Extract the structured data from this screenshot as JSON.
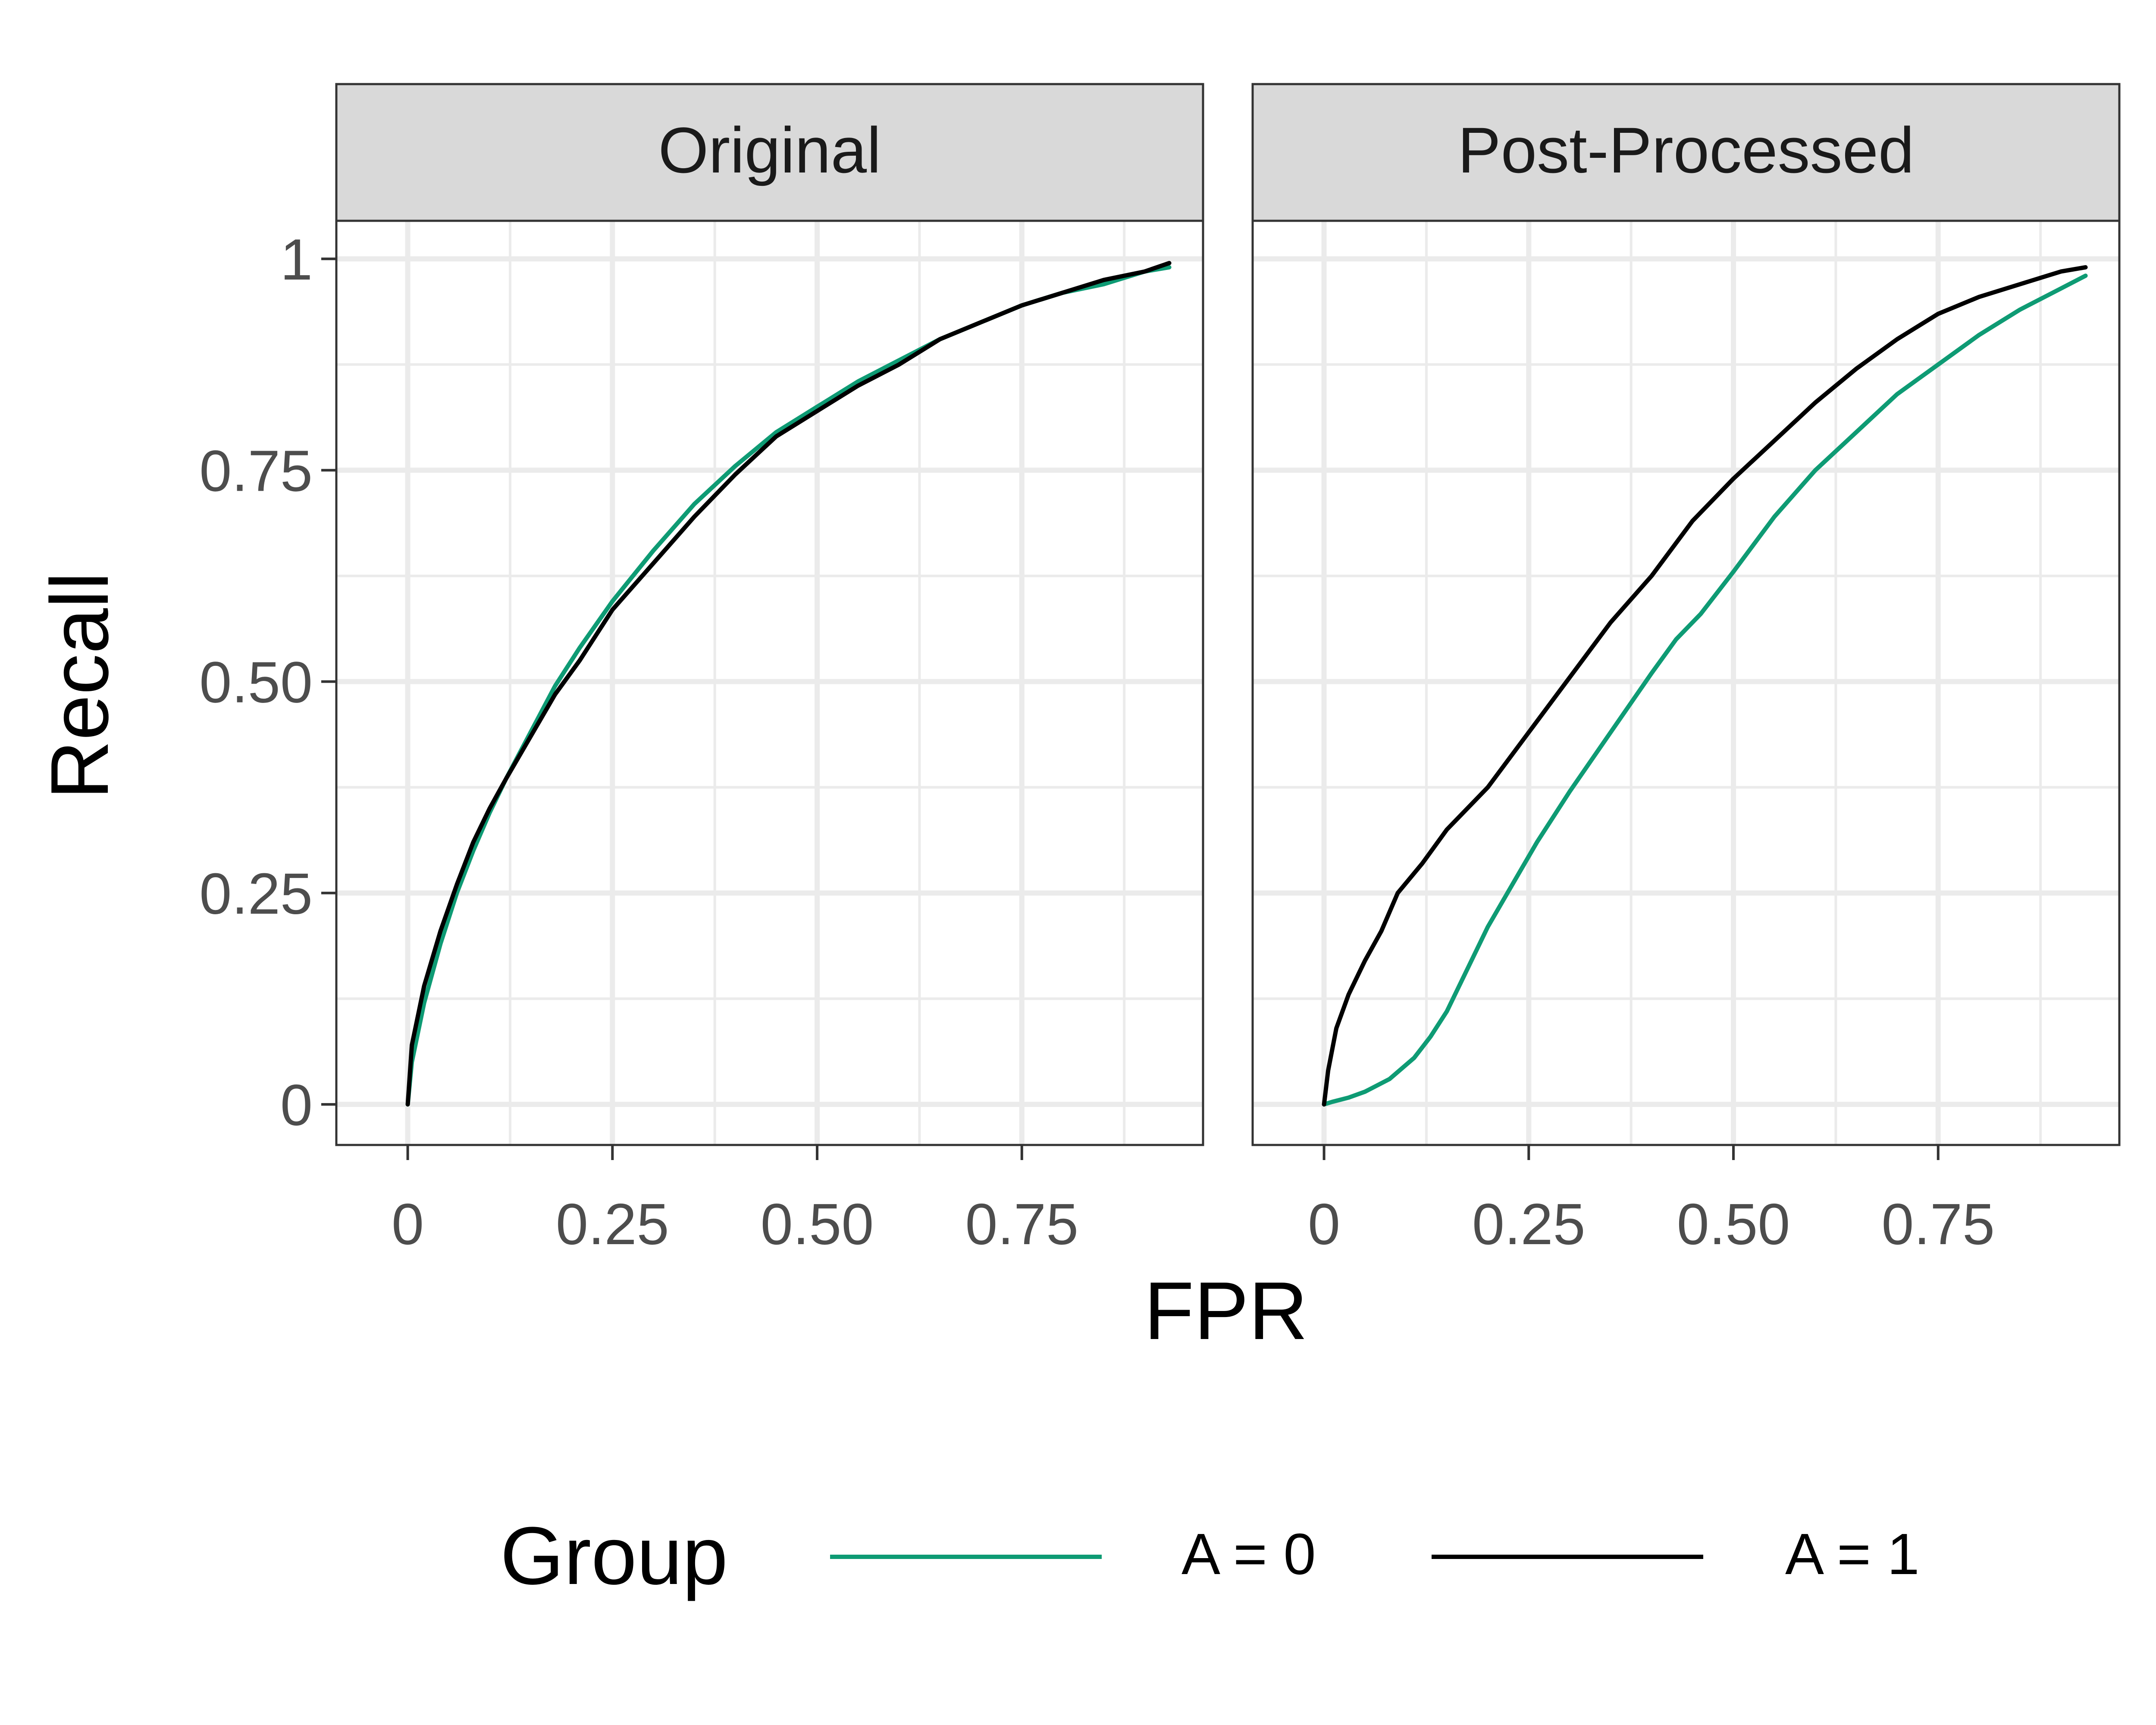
{
  "chart_data": {
    "type": "line",
    "xlabel": "FPR",
    "ylabel": "Recall",
    "xlim": [
      -0.0872,
      0.9713
    ],
    "ylim": [
      -0.048,
      1.045
    ],
    "x_ticks": [
      0,
      0.25,
      0.5,
      0.75
    ],
    "x_tick_labels": [
      "0",
      "0.25",
      "0.50",
      "0.75"
    ],
    "y_ticks": [
      0,
      0.25,
      0.5,
      0.75,
      1
    ],
    "y_tick_labels": [
      "0",
      "0.25",
      "0.50",
      "0.75",
      "1"
    ],
    "grid": true,
    "legend": {
      "title": "Group",
      "position": "bottom",
      "entries": [
        "A = 0",
        "A = 1"
      ]
    },
    "series_colors": {
      "A = 0": "#0e9b74",
      "A = 1": "#000000"
    },
    "facets": [
      {
        "title": "Original",
        "series": [
          {
            "name": "A = 0",
            "x": [
              0,
              0.005,
              0.02,
              0.04,
              0.06,
              0.08,
              0.1,
              0.12,
              0.15,
              0.18,
              0.21,
              0.25,
              0.3,
              0.35,
              0.4,
              0.45,
              0.5,
              0.55,
              0.6,
              0.65,
              0.7,
              0.75,
              0.8,
              0.85,
              0.9,
              0.93
            ],
            "y": [
              0,
              0.05,
              0.12,
              0.19,
              0.25,
              0.3,
              0.345,
              0.385,
              0.44,
              0.495,
              0.54,
              0.595,
              0.655,
              0.71,
              0.755,
              0.795,
              0.825,
              0.855,
              0.88,
              0.905,
              0.925,
              0.945,
              0.96,
              0.97,
              0.985,
              0.99
            ]
          },
          {
            "name": "A = 1",
            "x": [
              0,
              0.005,
              0.02,
              0.04,
              0.06,
              0.08,
              0.1,
              0.12,
              0.15,
              0.18,
              0.21,
              0.25,
              0.3,
              0.35,
              0.4,
              0.45,
              0.5,
              0.55,
              0.6,
              0.65,
              0.7,
              0.75,
              0.8,
              0.85,
              0.9,
              0.93
            ],
            "y": [
              0,
              0.07,
              0.14,
              0.205,
              0.26,
              0.31,
              0.35,
              0.385,
              0.435,
              0.485,
              0.525,
              0.585,
              0.64,
              0.695,
              0.745,
              0.79,
              0.82,
              0.85,
              0.875,
              0.905,
              0.925,
              0.945,
              0.96,
              0.975,
              0.985,
              0.995
            ]
          }
        ]
      },
      {
        "title": "Post-Processed",
        "series": [
          {
            "name": "A = 0",
            "x": [
              0,
              0.01,
              0.03,
              0.05,
              0.08,
              0.11,
              0.13,
              0.15,
              0.17,
              0.2,
              0.23,
              0.26,
              0.3,
              0.35,
              0.4,
              0.43,
              0.46,
              0.5,
              0.55,
              0.6,
              0.65,
              0.7,
              0.75,
              0.8,
              0.85,
              0.9,
              0.93
            ],
            "y": [
              0,
              0.003,
              0.008,
              0.015,
              0.03,
              0.055,
              0.08,
              0.11,
              0.15,
              0.21,
              0.26,
              0.31,
              0.37,
              0.44,
              0.51,
              0.55,
              0.58,
              0.63,
              0.695,
              0.75,
              0.795,
              0.84,
              0.875,
              0.91,
              0.94,
              0.965,
              0.98
            ]
          },
          {
            "name": "A = 1",
            "x": [
              0,
              0.005,
              0.015,
              0.03,
              0.05,
              0.07,
              0.09,
              0.12,
              0.15,
              0.2,
              0.25,
              0.3,
              0.35,
              0.4,
              0.45,
              0.5,
              0.55,
              0.6,
              0.65,
              0.7,
              0.75,
              0.8,
              0.85,
              0.9,
              0.93
            ],
            "y": [
              0,
              0.04,
              0.09,
              0.13,
              0.17,
              0.205,
              0.25,
              0.285,
              0.325,
              0.375,
              0.44,
              0.505,
              0.57,
              0.625,
              0.69,
              0.74,
              0.785,
              0.83,
              0.87,
              0.905,
              0.935,
              0.955,
              0.97,
              0.985,
              0.99
            ]
          }
        ]
      }
    ]
  }
}
